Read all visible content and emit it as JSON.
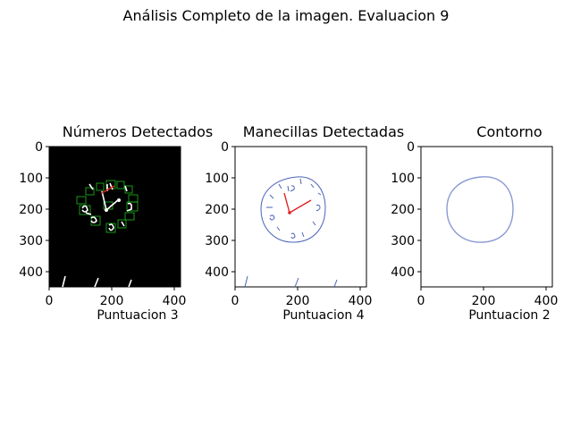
{
  "figure": {
    "suptitle": "Análisis Completo de la imagen. Evaluacion 9"
  },
  "chart_data": [
    {
      "type": "image",
      "title": "Números Detectados",
      "xlabel": "Puntuacion 3",
      "xlim": [
        0,
        420
      ],
      "ylim": [
        450,
        0
      ],
      "x_ticks": [
        0,
        200,
        400
      ],
      "y_ticks": [
        0,
        100,
        200,
        300,
        400
      ],
      "background": "#000000",
      "image_content": "clock drawing on black with green number detection boxes and white/red hand lines"
    },
    {
      "type": "image",
      "title": "Manecillas Detectadas",
      "xlabel": "Puntuacion 4",
      "xlim": [
        0,
        420
      ],
      "ylim": [
        450,
        0
      ],
      "x_ticks": [
        0,
        200,
        400
      ],
      "y_ticks": [
        0,
        100,
        200,
        300,
        400
      ],
      "background": "#ffffff",
      "image_content": "hand-drawn clock with numbers and red detected hands"
    },
    {
      "type": "image",
      "title": "Contorno",
      "xlabel": "Puntuacion 2",
      "xlim": [
        0,
        420
      ],
      "ylim": [
        450,
        0
      ],
      "x_ticks": [
        0,
        200,
        400
      ],
      "y_ticks": [
        0,
        100,
        200,
        300,
        400
      ],
      "background": "#ffffff",
      "image_content": "detected circular clock contour"
    }
  ],
  "colors": {
    "detection_boxes": "#1fbf1f",
    "hands": "#e02020",
    "ink": "#4a63b8"
  }
}
